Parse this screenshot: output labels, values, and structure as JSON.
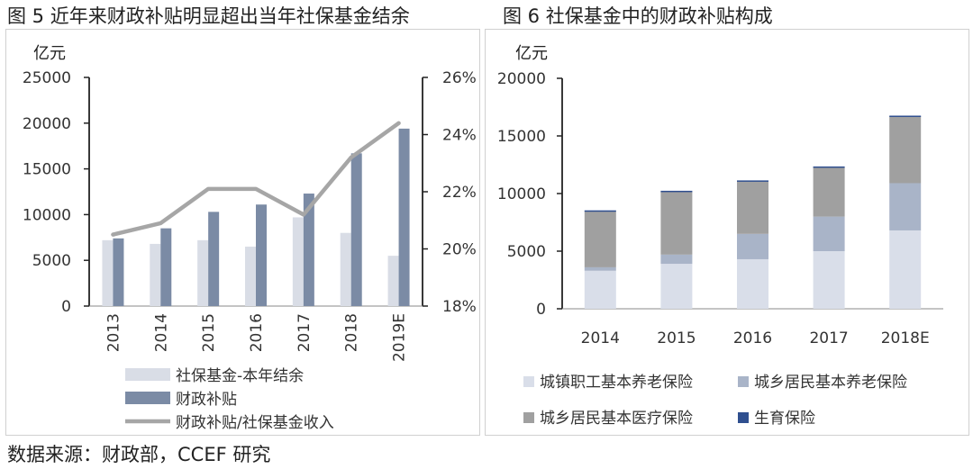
{
  "figure5_title": "图 5 近年来财政补贴明显超出当年社保基金结余",
  "figure6_title": "图 6  社保基金中的财政补贴构成",
  "source": "数据来源：财政部，CCEF 研究",
  "chart_data": [
    {
      "type": "bar",
      "unit_left": "亿元",
      "categories": [
        "2013",
        "2014",
        "2015",
        "2016",
        "2017",
        "2018",
        "2019E"
      ],
      "y_ticks": [
        "0",
        "5000",
        "10000",
        "15000",
        "20000",
        "25000"
      ],
      "y2_ticks": [
        "18%",
        "20%",
        "22%",
        "24%",
        "26%"
      ],
      "ylim": [
        0,
        25000
      ],
      "y2lim": [
        18,
        26
      ],
      "series": [
        {
          "name": "社保基金-本年结余",
          "kind": "bar",
          "axis": "left",
          "color": "#d9dde6",
          "values": [
            7200,
            6800,
            7200,
            6500,
            9700,
            8000,
            5500
          ]
        },
        {
          "name": "财政补贴",
          "kind": "bar",
          "axis": "left",
          "color": "#7b8ba5",
          "values": [
            7400,
            8500,
            10300,
            11100,
            12300,
            16700,
            19400
          ]
        },
        {
          "name": "财政补贴/社保基金收入",
          "kind": "line",
          "axis": "right",
          "color": "#a6a6a6",
          "values": [
            20.5,
            20.9,
            22.1,
            22.1,
            21.2,
            23.2,
            24.4
          ]
        }
      ],
      "legend": "bottom"
    },
    {
      "type": "bar",
      "stacked": true,
      "unit_left": "亿元",
      "categories": [
        "2014",
        "2015",
        "2016",
        "2017",
        "2018E"
      ],
      "y_ticks": [
        "0",
        "5000",
        "10000",
        "15000",
        "20000"
      ],
      "ylim": [
        0,
        20000
      ],
      "series": [
        {
          "name": "城镇职工基本养老保险",
          "color": "#d9dee9",
          "values": [
            3300,
            3900,
            4300,
            5000,
            6800
          ]
        },
        {
          "name": "城乡居民基本养老保险",
          "color": "#a9b4c8",
          "values": [
            300,
            800,
            2200,
            3000,
            4100
          ]
        },
        {
          "name": "城乡居民基本医疗保险",
          "color": "#a0a0a0",
          "values": [
            4900,
            5500,
            4600,
            4300,
            5800
          ]
        },
        {
          "name": "生育保险",
          "color": "#2f4f8f",
          "values": [
            40,
            40,
            40,
            50,
            60
          ]
        }
      ],
      "legend": "bottom"
    }
  ]
}
